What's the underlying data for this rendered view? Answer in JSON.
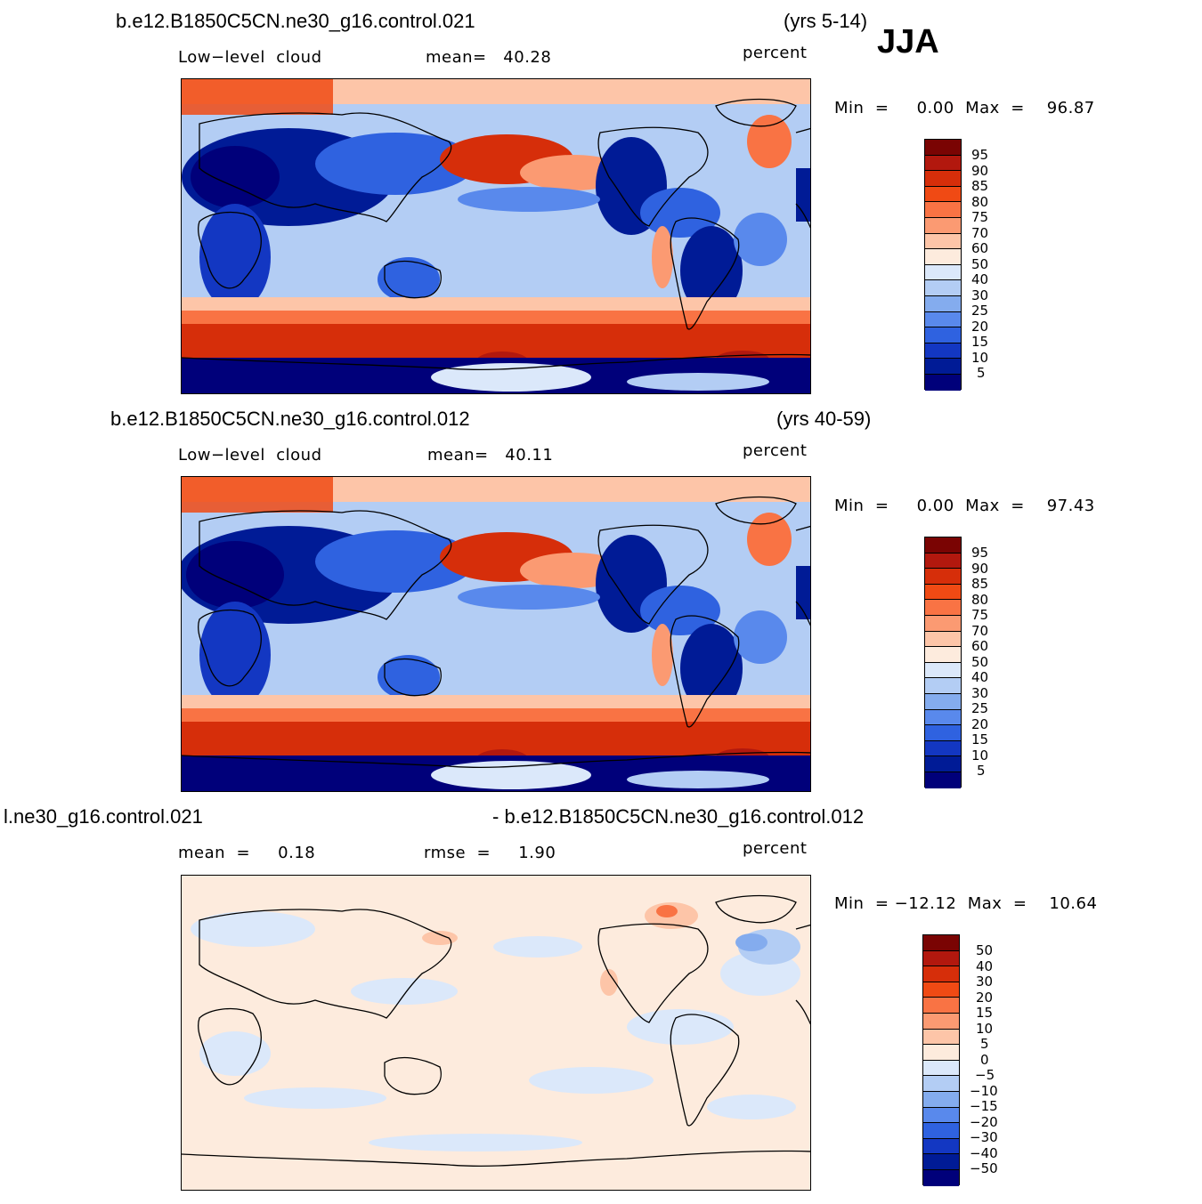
{
  "season": "JJA",
  "panels": [
    {
      "case_name": "b.e12.B1850C5CN.ne30_g16.control.021",
      "years": "(yrs 5-14)",
      "field_label": "Low−level  cloud",
      "stat1": "mean=   40.28",
      "stat2": "",
      "units": "percent",
      "minmax": "Min  =     0.00  Max  =    96.87",
      "colorbar_labels": [
        "95",
        "90",
        "85",
        "80",
        "75",
        "70",
        "60",
        "50",
        "40",
        "30",
        "25",
        "20",
        "15",
        "10",
        "5"
      ]
    },
    {
      "case_name": "b.e12.B1850C5CN.ne30_g16.control.012",
      "years": "(yrs 40-59)",
      "field_label": "Low−level  cloud",
      "stat1": "mean=   40.11",
      "stat2": "",
      "units": "percent",
      "minmax": "Min  =     0.00  Max  =    97.43",
      "colorbar_labels": [
        "95",
        "90",
        "85",
        "80",
        "75",
        "70",
        "60",
        "50",
        "40",
        "30",
        "25",
        "20",
        "15",
        "10",
        "5"
      ]
    },
    {
      "case_name": "l.ne30_g16.control.021",
      "years": "- b.e12.B1850C5CN.ne30_g16.control.012",
      "field_label": "mean  =     0.18",
      "stat1": "rmse  =     1.90",
      "stat2": "",
      "units": "percent",
      "minmax": "Min  = −12.12  Max  =    10.64",
      "colorbar_labels": [
        "50",
        "40",
        "30",
        "20",
        "15",
        "10",
        "5",
        "0",
        "−5",
        "−10",
        "−15",
        "−20",
        "−30",
        "−40",
        "−50"
      ]
    }
  ],
  "colors": {
    "abs_scale": [
      "#7a0403",
      "#b2180e",
      "#d62e0a",
      "#f04a14",
      "#f97344",
      "#fb9a72",
      "#fdc5a8",
      "#fdebdd",
      "#dbe8fa",
      "#b3cdf4",
      "#84acee",
      "#5989ec",
      "#2f62e0",
      "#1337c2",
      "#001b96",
      "#00007a"
    ],
    "diff_scale": [
      "#7a0403",
      "#b2180e",
      "#d62e0a",
      "#f04a14",
      "#f97344",
      "#fb9a72",
      "#fdc5a8",
      "#fdebdd",
      "#dbe8fa",
      "#b3cdf4",
      "#84acee",
      "#5989ec",
      "#2f62e0",
      "#1337c2",
      "#001b96",
      "#00007a"
    ]
  }
}
